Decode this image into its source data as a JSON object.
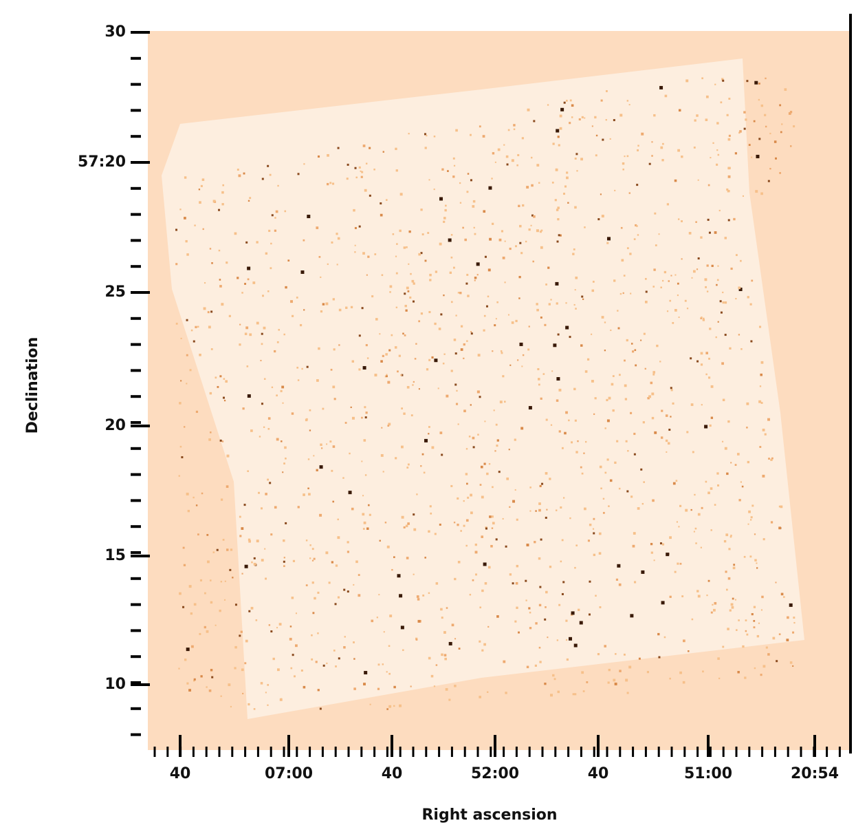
{
  "chart_data": {
    "type": "image",
    "xlabel": "Right ascension",
    "ylabel": "Declination",
    "xtick_labels": [
      "40",
      "07:00",
      "40",
      "52:00",
      "40",
      "51:00",
      "20:54"
    ],
    "ytick_labels": [
      "30",
      "57:20",
      "25",
      "20",
      "15",
      "10"
    ],
    "background": "#fddcbf"
  }
}
